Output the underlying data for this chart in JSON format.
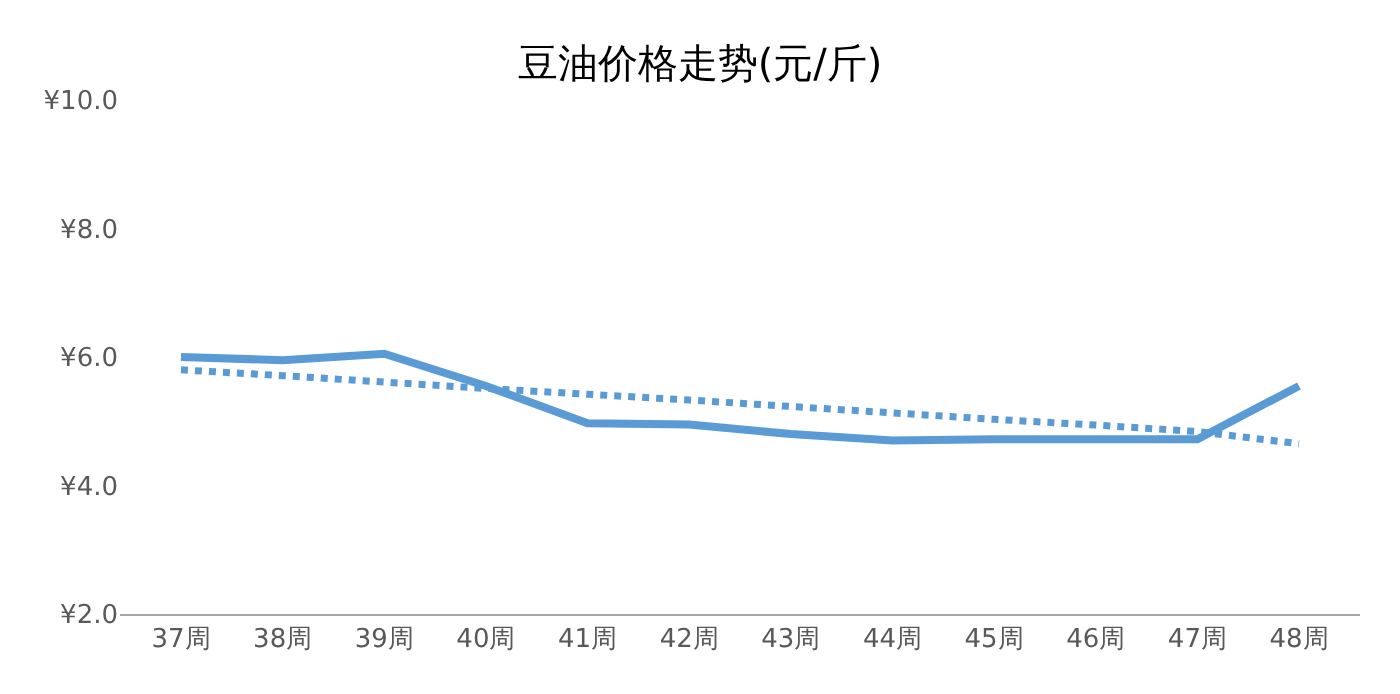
{
  "chart_data": {
    "type": "line",
    "title": "豆油价格走势(元/斤)",
    "categories": [
      "37周",
      "38周",
      "39周",
      "40周",
      "41周",
      "42周",
      "43周",
      "44周",
      "45周",
      "46周",
      "47周",
      "48周"
    ],
    "series": [
      {
        "color": "#5b9bd5",
        "line_style": "solid",
        "values": [
          6.0,
          5.95,
          6.05,
          5.55,
          4.97,
          4.95,
          4.8,
          4.7,
          4.72,
          4.72,
          4.72,
          5.55
        ]
      },
      {
        "color": "#5b9bd5",
        "line_style": "dotted",
        "values": [
          5.8,
          5.71,
          5.61,
          5.51,
          5.42,
          5.33,
          5.23,
          5.13,
          5.03,
          4.94,
          4.84,
          4.65
        ]
      }
    ],
    "ylim": [
      2,
      10
    ],
    "yticks": [
      {
        "value": 2,
        "label": "¥2.0"
      },
      {
        "value": 4,
        "label": "¥4.0"
      },
      {
        "value": 6,
        "label": "¥6.0"
      },
      {
        "value": 8,
        "label": "¥8.0"
      },
      {
        "value": 10,
        "label": "¥10.0"
      }
    ],
    "marker": "none"
  }
}
